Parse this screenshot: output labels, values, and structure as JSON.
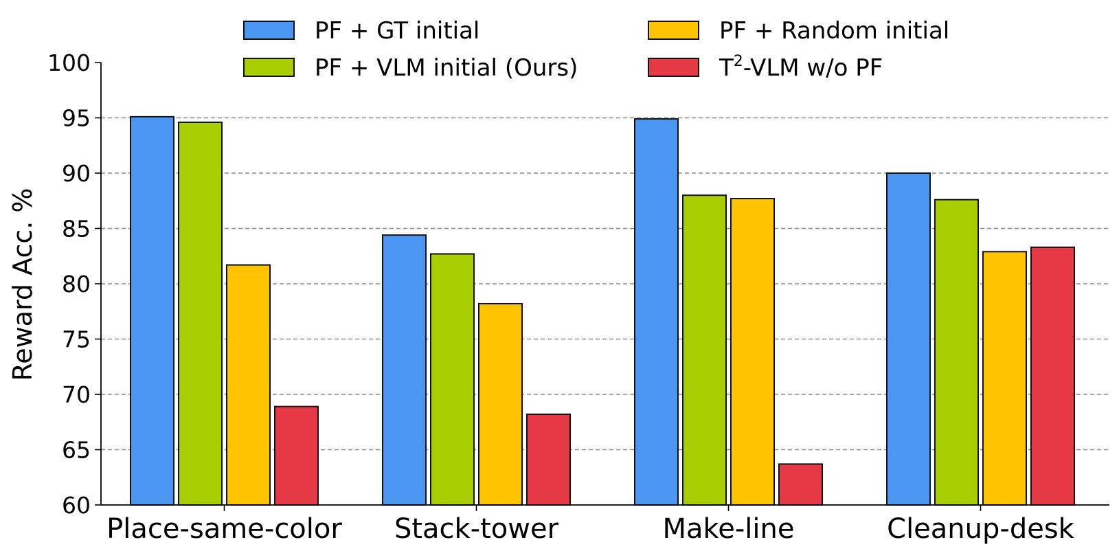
{
  "chart_data": {
    "type": "bar",
    "title": "",
    "xlabel": "",
    "ylabel": "Reward Acc. %",
    "ylim": [
      60,
      100
    ],
    "yticks": [
      60,
      65,
      70,
      75,
      80,
      85,
      90,
      95,
      100
    ],
    "grid": "horizontal dashed",
    "legend_placement": "top",
    "categories": [
      "Place-same-color",
      "Stack-tower",
      "Make-line",
      "Cleanup-desk"
    ],
    "series": [
      {
        "name": "PF + GT initial",
        "color": "#4a96f0",
        "values": [
          95.1,
          84.4,
          94.9,
          90.0
        ]
      },
      {
        "name": "PF + VLM initial (Ours)",
        "color": "#a9cd00",
        "values": [
          94.6,
          82.7,
          88.0,
          87.6
        ]
      },
      {
        "name": "PF + Random initial",
        "color": "#ffc400",
        "values": [
          81.7,
          78.2,
          87.7,
          82.9
        ]
      },
      {
        "name": "T2-VLM w/o PF",
        "name_parts": {
          "base": "T",
          "sup": "2",
          "rest": "-VLM w/o PF"
        },
        "color": "#e53945",
        "values": [
          68.9,
          68.2,
          63.7,
          83.3
        ]
      }
    ]
  }
}
